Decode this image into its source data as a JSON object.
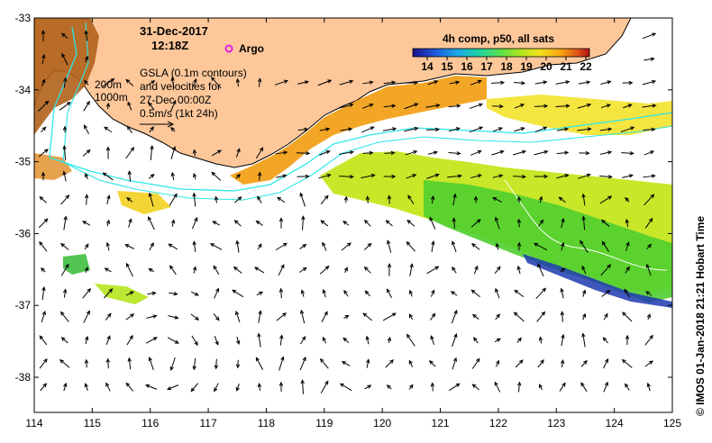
{
  "map": {
    "date": "31-Dec-2017",
    "time": "12:18Z",
    "legend_argo": "Argo",
    "legend_argo_color": "#e020e0",
    "isobath_200": "200m",
    "isobath_1000": "1000m",
    "gsla_line1": "GSLA (0.1m contours)",
    "gsla_line2": "and velocities for",
    "gsla_line3": "27-Dec 00:00Z",
    "velocity_scale": "0.5m/s (1kt 24h)",
    "credit": "© IMOS 01-Jan-2018 21:21 Hobart Time",
    "x_ticks": [
      "114",
      "115",
      "116",
      "117",
      "118",
      "119",
      "120",
      "121",
      "122",
      "123",
      "124",
      "125"
    ],
    "y_ticks": [
      "-33",
      "-34",
      "-35",
      "-36",
      "-37",
      "-38"
    ],
    "land_color": "#fdc79a",
    "colorbar": {
      "title": "4h comp, p50, all sats",
      "ticks": [
        "14",
        "15",
        "16",
        "17",
        "18",
        "19",
        "20",
        "21",
        "22"
      ],
      "colors": [
        "#1b0f8a",
        "#1f56d6",
        "#19a6e6",
        "#22d3a0",
        "#5ee04a",
        "#b5e61d",
        "#f2e020",
        "#f5a20f",
        "#e0541a",
        "#b01010"
      ]
    }
  }
}
